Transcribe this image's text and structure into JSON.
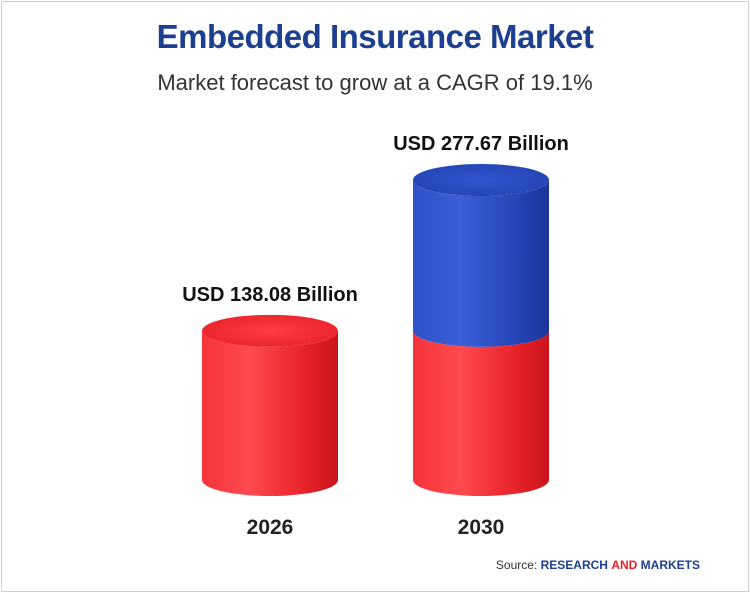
{
  "title": "Embedded Insurance Market",
  "subtitle": "Market forecast to grow at a CAGR of 19.1%",
  "source": {
    "prefix": "Source:",
    "brand_a": "RESEARCH",
    "brand_and": "AND",
    "brand_b": "MARKETS"
  },
  "colors": {
    "red": "#e8232a",
    "blue": "#2646b8",
    "title": "#1d3f8f"
  },
  "chart_data": {
    "type": "bar",
    "title": "Embedded Insurance Market",
    "subtitle": "Market forecast to grow at a CAGR of 19.1%",
    "categories": [
      "2026",
      "2030"
    ],
    "values": [
      138.08,
      277.67
    ],
    "value_labels": [
      "USD 138.08 Billion",
      "USD 277.67 Billion"
    ],
    "unit": "USD Billion",
    "style": "3d-cylinder",
    "segments": [
      {
        "name": "",
        "values": [
          138.08,
          138.08
        ],
        "color": "#e8232a"
      },
      {
        "name": "",
        "values": [
          0,
          139.59
        ],
        "color": "#2646b8"
      }
    ],
    "grid": false,
    "legend": "none"
  }
}
